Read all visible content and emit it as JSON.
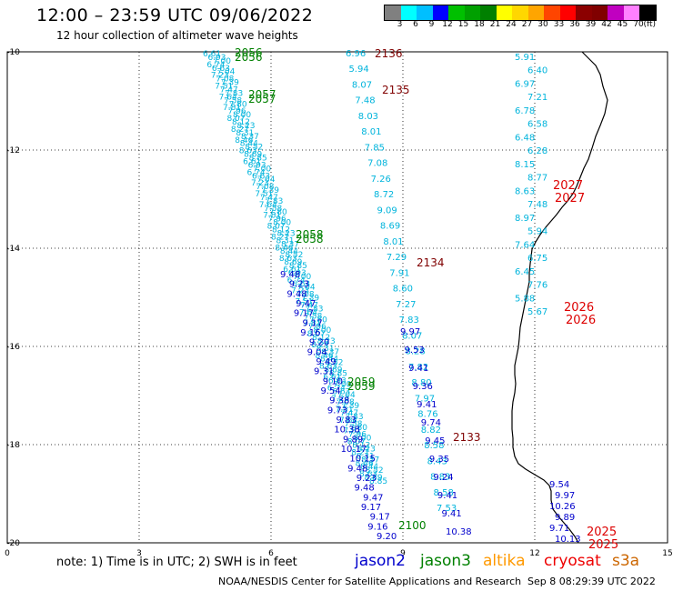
{
  "header": {
    "title": "12:00 – 23:59 UTC 09/06/2022",
    "subtitle": "12 hour collection of altimeter wave heights"
  },
  "colorbar": {
    "colors": [
      "#808080",
      "#00ffff",
      "#00bfff",
      "#0000ff",
      "#00c000",
      "#00a000",
      "#008000",
      "#ffff00",
      "#ffd700",
      "#ffa500",
      "#ff4500",
      "#ff0000",
      "#8b0000",
      "#800000",
      "#c000c0",
      "#ff80ff",
      "#000000"
    ],
    "labels": [
      "3",
      "6",
      "9",
      "12",
      "15",
      "18",
      "21",
      "24",
      "27",
      "30",
      "33",
      "36",
      "39",
      "42",
      "45",
      "70"
    ],
    "unit": "(ft)"
  },
  "axes": {
    "x_labels": [
      "0",
      "3",
      "6",
      "9",
      "12",
      "15"
    ],
    "y_labels": [
      "-10",
      "-12",
      "-14",
      "-16",
      "-18",
      "-20"
    ]
  },
  "tracks": {
    "jason2": {
      "color": "#0000cc",
      "values": [
        "9.48",
        "9.23",
        "9.48",
        "9.47",
        "9.17",
        "9.17",
        "9.16",
        "9.20",
        "9.04",
        "9.49",
        "9.31",
        "9.10",
        "9.54",
        "9.38",
        "9.73",
        "9.83",
        "10.38",
        "9.89",
        "10.17",
        "10.15",
        "9.46",
        "9.97",
        "9.53",
        "9.41",
        "9.36",
        "9.41",
        "9.74",
        "9.45",
        "9.35",
        "9.24",
        "9.41",
        "9.41",
        "10.38",
        "9.54",
        "9.97",
        "10.26",
        "9.89",
        "9.71",
        "10.13"
      ]
    },
    "jason3": {
      "color": "#008000",
      "passes": [
        "2056",
        "2057",
        "2058",
        "2059",
        "2100"
      ]
    },
    "saral": {
      "color": "#800000",
      "passes": [
        "2136",
        "2135",
        "2134",
        "2133"
      ]
    },
    "cryosat": {
      "color": "#dd0000",
      "passes": [
        "2027",
        "2026",
        "2025"
      ]
    },
    "sentinel3a": {
      "color": "#00b4dc",
      "values": [
        "6.96",
        "5.94",
        "8.07",
        "7.48",
        "8.03",
        "8.01",
        "7.85",
        "7.08",
        "7.26",
        "8.72",
        "9.09",
        "8.69",
        "8.01",
        "7.29",
        "7.91",
        "8.60",
        "7.27",
        "7.83",
        "8.07",
        "8.28",
        "7.82",
        "8.80",
        "7.97",
        "8.76",
        "8.82",
        "8.58",
        "8.43",
        "8.83",
        "8.58",
        "7.53",
        "5.91",
        "6.40",
        "6.97",
        "7.21",
        "6.78",
        "6.58",
        "6.48",
        "6.28",
        "8.15",
        "8.77",
        "8.63",
        "7.48",
        "8.97",
        "5.94",
        "7.64",
        "6.75",
        "6.45",
        "7.76",
        "5.88",
        "5.67",
        "6.61",
        "6.93",
        "7.00",
        "6.74",
        "6.63",
        "7.04",
        "7.23",
        "7.08",
        "7.39",
        "7.51",
        "7.47",
        "7.83",
        "7.64",
        "7.58",
        "7.80",
        "7.81",
        "7.96",
        "8.00",
        "8.07",
        "8.12",
        "8.23",
        "8.27",
        "8.31",
        "8.37",
        "8.46",
        "8.44",
        "8.52",
        "8.63",
        "8.69",
        "8.85"
      ]
    }
  },
  "footer": {
    "note": "note:  1) Time is in UTC;  2) SWH is in feet",
    "legend": [
      {
        "label": "jason2",
        "color": "#0000cc"
      },
      {
        "label": "jason3",
        "color": "#008000"
      },
      {
        "label": "altika",
        "color": "#ff9900"
      },
      {
        "label": "cryosat",
        "color": "#ee0000"
      },
      {
        "label": "s3a",
        "color": "#cc6600"
      }
    ],
    "credit": "NOAA/NESDIS Center for Satellite Applications and Research",
    "timestamp": "Sep  8 08:29:39 UTC 2022"
  }
}
